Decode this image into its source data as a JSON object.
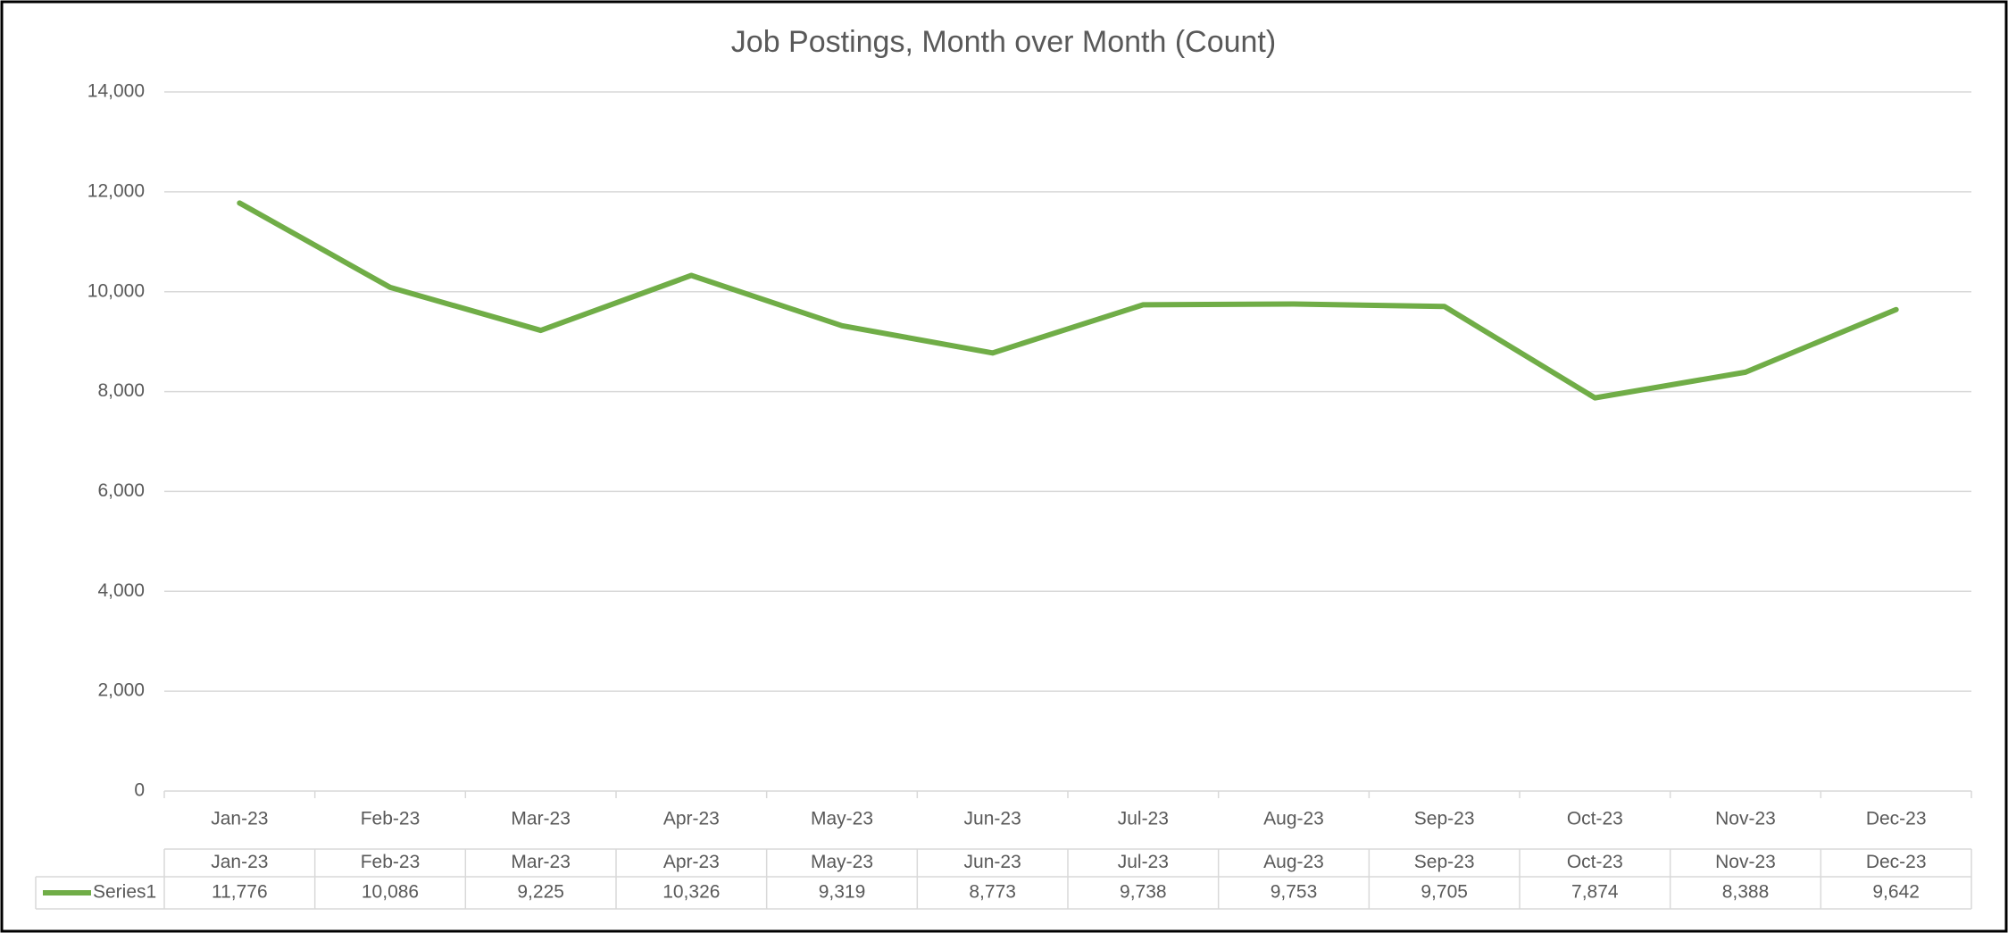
{
  "chart_data": {
    "type": "line",
    "title": "Job Postings, Month over Month (Count)",
    "categories": [
      "Jan-23",
      "Feb-23",
      "Mar-23",
      "Apr-23",
      "May-23",
      "Jun-23",
      "Jul-23",
      "Aug-23",
      "Sep-23",
      "Oct-23",
      "Nov-23",
      "Dec-23"
    ],
    "series": [
      {
        "name": "Series1",
        "color": "#70ad47",
        "values": [
          11776,
          10086,
          9225,
          10326,
          9319,
          8773,
          9738,
          9753,
          9705,
          7874,
          8388,
          9642
        ],
        "value_labels": [
          "11,776",
          "10,086",
          "9,225",
          "10,326",
          "9,319",
          "8,773",
          "9,738",
          "9,753",
          "9,705",
          "7,874",
          "8,388",
          "9,642"
        ]
      }
    ],
    "ylim": [
      0,
      14000
    ],
    "yticks": [
      0,
      {
        "value": 2000,
        "label": "2,000"
      },
      {
        "value": 4000,
        "label": "4,000"
      },
      {
        "value": 6000,
        "label": "6,000"
      },
      {
        "value": 8000,
        "label": "8,000"
      },
      {
        "value": 10000,
        "label": "10,000"
      },
      {
        "value": 12000,
        "label": "12,000"
      },
      {
        "value": 14000,
        "label": "14,000"
      }
    ],
    "grid": true
  }
}
